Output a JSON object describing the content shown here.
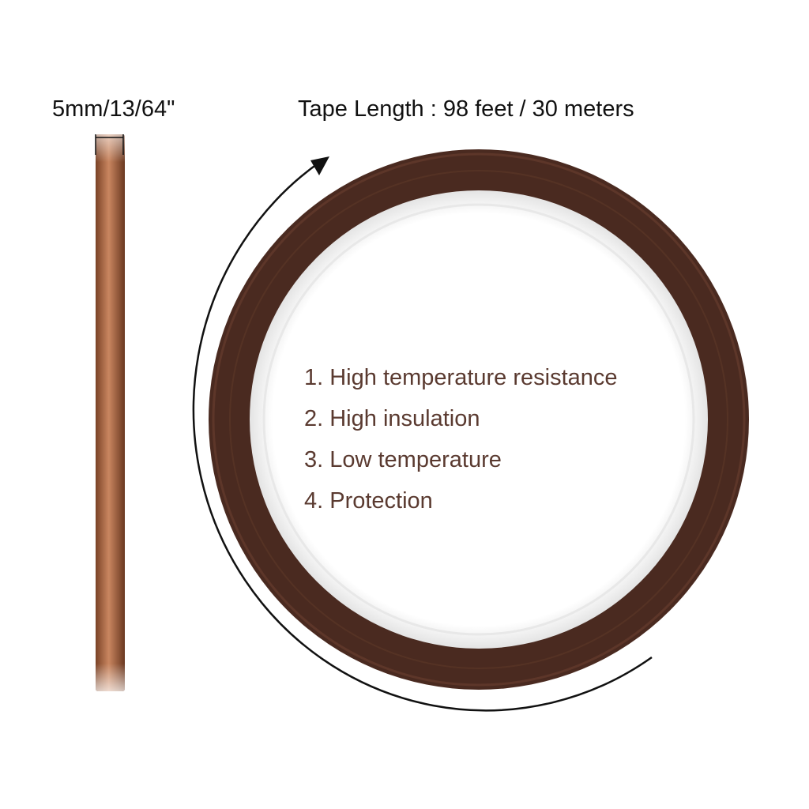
{
  "tape_width_label": "5mm/13/64\"",
  "tape_length_label": "Tape Length : 98 feet  / 30 meters",
  "features": [
    "1. High temperature resistance",
    "2. High insulation",
    "3. Low temperature",
    "4. Protection"
  ],
  "colors": {
    "tape_copper": "#b5734a",
    "tape_dark": "#4a2a20",
    "feature_text": "#5a3a30"
  }
}
